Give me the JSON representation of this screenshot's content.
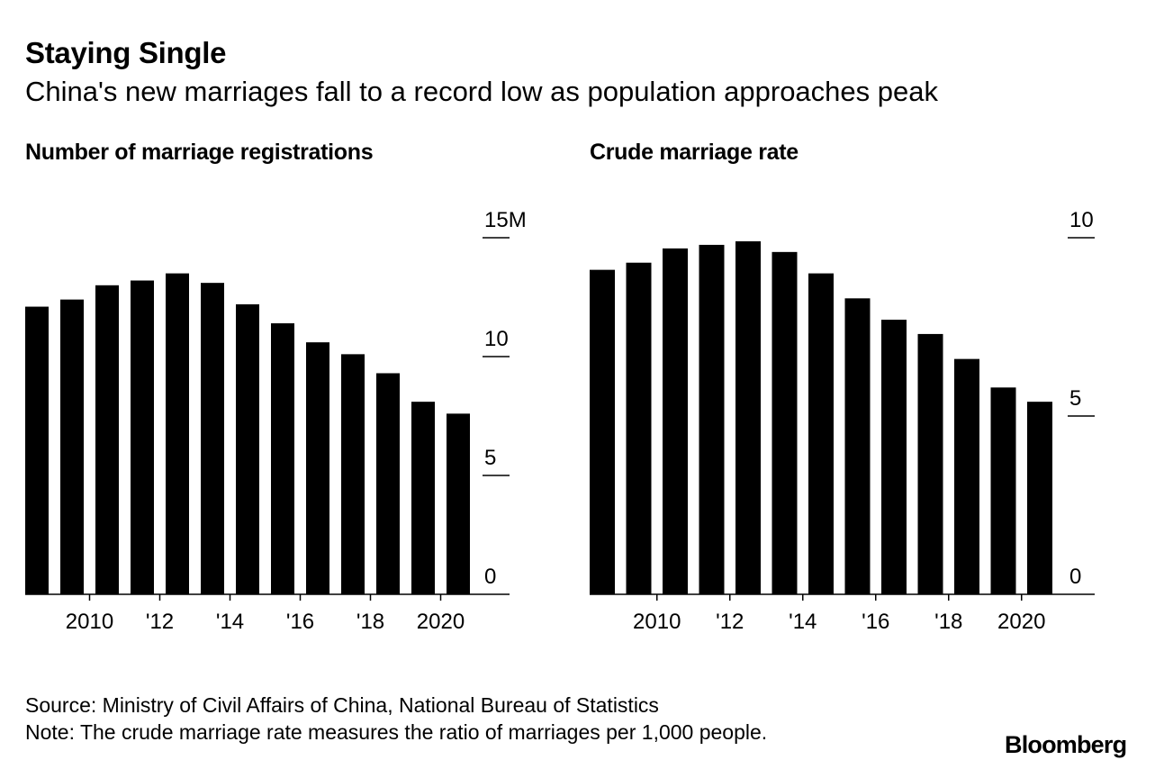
{
  "header": {
    "title": "Staying Single",
    "subtitle": "China's new marriages fall to a record low as population approaches peak"
  },
  "footer": {
    "source": "Source: Ministry of Civil Affairs of China, National Bureau of Statistics",
    "note": "Note: The crude marriage rate measures the ratio of marriages per 1,000 people.",
    "brand": "Bloomberg"
  },
  "colors": {
    "bar": "#000000",
    "axis": "#000000",
    "background": "#ffffff"
  },
  "chart_data": [
    {
      "type": "bar",
      "title": "Number of marriage registrations",
      "categories": [
        "2009",
        "2010",
        "2011",
        "2012",
        "2013",
        "2014",
        "2015",
        "2016",
        "2017",
        "2018",
        "2019",
        "2020",
        "2021"
      ],
      "values": [
        12.1,
        12.4,
        13.0,
        13.2,
        13.5,
        13.1,
        12.2,
        11.4,
        10.6,
        10.1,
        9.3,
        8.1,
        7.6
      ],
      "unit": "M",
      "ylim": [
        0,
        15
      ],
      "yticks": [
        0,
        5,
        10,
        15
      ],
      "ytick_labels": [
        "0",
        "5",
        "10",
        "15M"
      ],
      "xtick_labels": [
        "2010",
        "'12",
        "'14",
        "'16",
        "'18",
        "2020"
      ],
      "xtick_categories": [
        "2010",
        "2012",
        "2014",
        "2016",
        "2018",
        "2020"
      ],
      "xlabel": "",
      "ylabel": "",
      "grid": false
    },
    {
      "type": "bar",
      "title": "Crude marriage rate",
      "categories": [
        "2009",
        "2010",
        "2011",
        "2012",
        "2013",
        "2014",
        "2015",
        "2016",
        "2017",
        "2018",
        "2019",
        "2020",
        "2021"
      ],
      "values": [
        9.1,
        9.3,
        9.7,
        9.8,
        9.9,
        9.6,
        9.0,
        8.3,
        7.7,
        7.3,
        6.6,
        5.8,
        5.4
      ],
      "unit": "per 1,000 people",
      "ylim": [
        0,
        10
      ],
      "yticks": [
        0,
        5,
        10
      ],
      "ytick_labels": [
        "0",
        "5",
        "10"
      ],
      "xtick_labels": [
        "2010",
        "'12",
        "'14",
        "'16",
        "'18",
        "2020"
      ],
      "xtick_categories": [
        "2010",
        "2012",
        "2014",
        "2016",
        "2018",
        "2020"
      ],
      "xlabel": "",
      "ylabel": "",
      "grid": false
    }
  ]
}
